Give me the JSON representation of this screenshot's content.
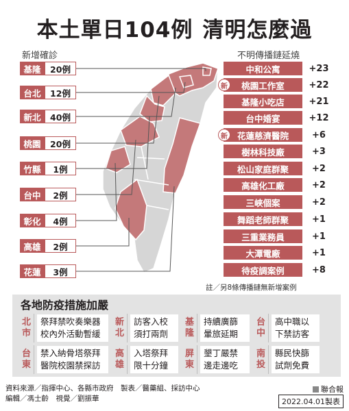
{
  "title_part1": "本土單日104例",
  "title_part2": "清明怎麼過",
  "left_header": "新增確診",
  "right_header": "不明傳播鏈延燒",
  "new_cases": [
    {
      "name": "基隆",
      "count": "20例"
    },
    {
      "name": "台北",
      "count": "12例"
    },
    {
      "name": "新北",
      "count": "40例"
    },
    {
      "name": "桃園",
      "count": "20例"
    },
    {
      "name": "竹縣",
      "count": "1例"
    },
    {
      "name": "台中",
      "count": "2例"
    },
    {
      "name": "彰化",
      "count": "4例"
    },
    {
      "name": "高雄",
      "count": "2例"
    },
    {
      "name": "花蓮",
      "count": "3例"
    }
  ],
  "clusters": [
    {
      "name": "中和公寓",
      "count": "+23",
      "new": ""
    },
    {
      "name": "桃園工作室",
      "count": "+22",
      "new": "新"
    },
    {
      "name": "基隆小吃店",
      "count": "+21",
      "new": ""
    },
    {
      "name": "台中婚宴",
      "count": "+12",
      "new": ""
    },
    {
      "name": "花蓮慈濟醫院",
      "count": "+6",
      "new": "新"
    },
    {
      "name": "樹林科技廠",
      "count": "+3",
      "new": ""
    },
    {
      "name": "松山家庭群聚",
      "count": "+2",
      "new": ""
    },
    {
      "name": "高雄化工廠",
      "count": "+2",
      "new": ""
    },
    {
      "name": "三峽個案",
      "count": "+2",
      "new": ""
    },
    {
      "name": "舞蹈老師群聚",
      "count": "+1",
      "new": ""
    },
    {
      "name": "三重業務員",
      "count": "+1",
      "new": ""
    },
    {
      "name": "大潭電廠",
      "count": "+1",
      "new": ""
    },
    {
      "name": "待疫調案例",
      "count": "+8",
      "new": ""
    }
  ],
  "note": "註／另8條傳播鏈無新增案例",
  "measures_title": "各地防疫措施加嚴",
  "measures": [
    [
      {
        "city1": "北",
        "city2": "市",
        "line1": "祭拜禁吹奏樂器",
        "line2": "校內外活動暫緩"
      },
      {
        "city1": "新",
        "city2": "北",
        "line1": "訪客入校",
        "line2": "須打兩劑"
      },
      {
        "city1": "基",
        "city2": "隆",
        "line1": "持續廣篩",
        "line2": "暈旅延期"
      },
      {
        "city1": "台",
        "city2": "中",
        "line1": "高中職以",
        "line2": "下禁訪客"
      }
    ],
    [
      {
        "city1": "台",
        "city2": "東",
        "line1": "禁入納骨塔祭拜",
        "line2": "醫院校園禁探訪"
      },
      {
        "city1": "高",
        "city2": "雄",
        "line1": "入塔祭拜",
        "line2": "限十分鐘"
      },
      {
        "city1": "屏",
        "city2": "東",
        "line1": "墾丁嚴禁",
        "line2": "邊走邊吃"
      },
      {
        "city1": "南",
        "city2": "投",
        "line1": "縣民快篩",
        "line2": "試劑免費"
      }
    ]
  ],
  "source_line1": "資料來源／指揮中心、各縣市政府　製表／醫藥組、採訪中心",
  "source_line2": "編輯／馮士齡　視覺／劉振華",
  "brand": "聯合報",
  "date": "2022.04.01製表",
  "colors": {
    "accent": "#b9595a",
    "map_gray": "#d6d6d6",
    "panel": "#e3e3e3"
  }
}
